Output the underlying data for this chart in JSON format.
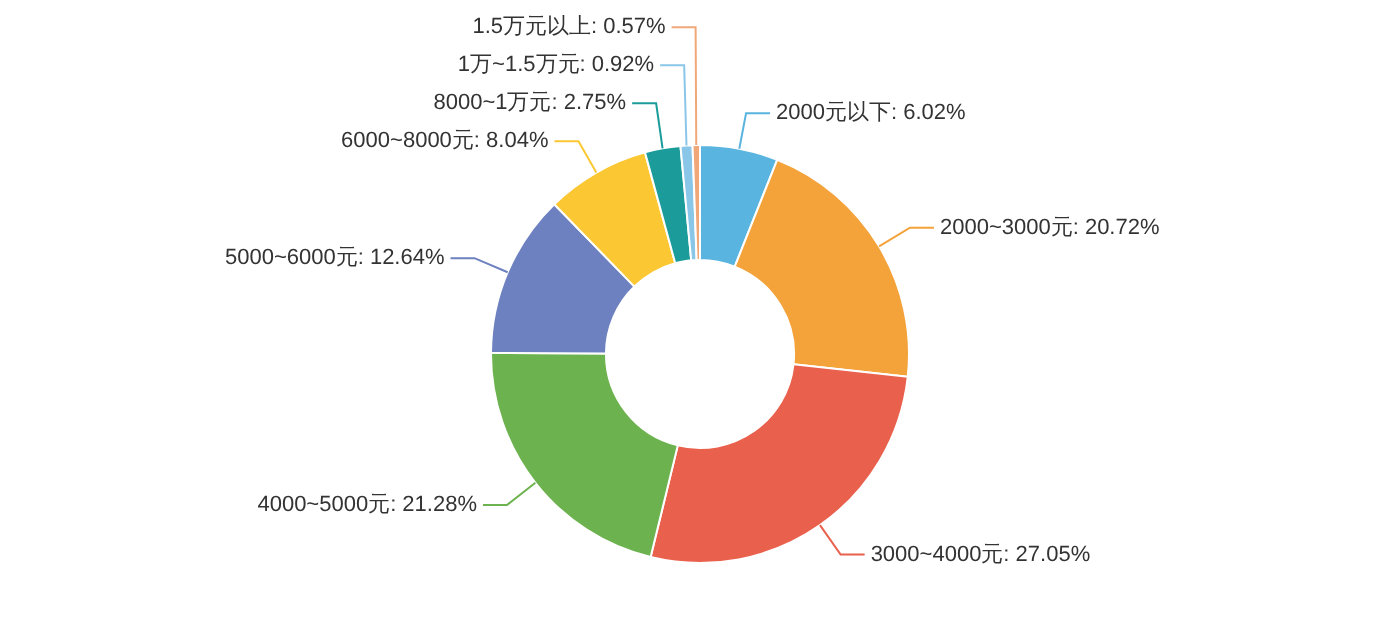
{
  "chart_data": {
    "type": "donut",
    "categories": [
      "2000元以下",
      "2000~3000元",
      "3000~4000元",
      "4000~5000元",
      "5000~6000元",
      "6000~8000元",
      "8000~1万元",
      "1万~1.5万元",
      "1.5万元以上"
    ],
    "values": [
      6.02,
      20.72,
      27.05,
      21.28,
      12.64,
      8.04,
      2.75,
      0.92,
      0.57
    ],
    "value_labels": [
      "6.02%",
      "20.72%",
      "27.05%",
      "21.28%",
      "12.64%",
      "8.04%",
      "2.75%",
      "0.92%",
      "0.57%"
    ],
    "colors": [
      "#5ab4e0",
      "#f4a23a",
      "#e9604c",
      "#6cb24e",
      "#6d80bf",
      "#fbc833",
      "#1b9c9a",
      "#8ac6e8",
      "#f0a878"
    ],
    "legend": false
  }
}
